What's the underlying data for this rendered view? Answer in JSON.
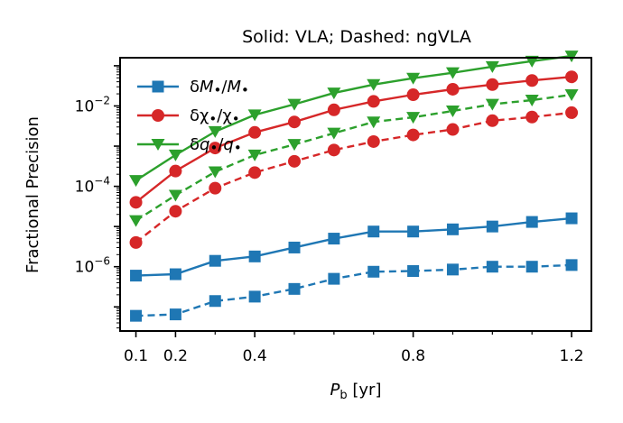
{
  "chart_data": {
    "type": "line",
    "title": "Solid: VLA; Dashed: ngVLA",
    "xlabel": "P_b [yr]",
    "xlabel_main": "P",
    "xlabel_sub": "b",
    "xlabel_unit": " [yr]",
    "ylabel": "Fractional Precision",
    "x_scale": "linear",
    "y_scale": "log",
    "xlim": [
      0.06,
      1.25
    ],
    "ylim_log10": [
      -7.6,
      -0.8
    ],
    "x_ticks": [
      0.1,
      0.2,
      0.4,
      0.8,
      1.2
    ],
    "x_tick_labels": [
      "0.1",
      "0.2",
      "0.4",
      "0.8",
      "1.2"
    ],
    "y_ticks_log10": [
      -6,
      -4,
      -2
    ],
    "y_tick_labels": [
      {
        "base": "10",
        "exp": "−6"
      },
      {
        "base": "10",
        "exp": "−4"
      },
      {
        "base": "10",
        "exp": "−2"
      }
    ],
    "x": [
      0.1,
      0.2,
      0.3,
      0.4,
      0.5,
      0.6,
      0.7,
      0.8,
      0.9,
      1.0,
      1.1,
      1.2
    ],
    "legend": {
      "placement": "top-left",
      "entries": [
        {
          "series_index": 0,
          "label": "δM•/M•",
          "parts": [
            {
              "t": "δ",
              "i": false
            },
            {
              "t": "M",
              "i": true
            },
            {
              "t": "•",
              "i": false,
              "sub": true
            },
            {
              "t": "/",
              "i": false
            },
            {
              "t": "M",
              "i": true
            },
            {
              "t": "•",
              "i": false,
              "sub": true
            }
          ]
        },
        {
          "series_index": 1,
          "label": "δχ•/χ•",
          "parts": [
            {
              "t": "δ",
              "i": false
            },
            {
              "t": "χ",
              "i": false
            },
            {
              "t": "•",
              "i": false,
              "sub": true
            },
            {
              "t": "/",
              "i": false
            },
            {
              "t": "χ",
              "i": false
            },
            {
              "t": "•",
              "i": false,
              "sub": true
            }
          ]
        },
        {
          "series_index": 2,
          "label": "δq•/q•",
          "parts": [
            {
              "t": "δ",
              "i": false
            },
            {
              "t": "q",
              "i": true
            },
            {
              "t": "•",
              "i": false,
              "sub": true
            },
            {
              "t": "/",
              "i": false
            },
            {
              "t": "q",
              "i": true
            },
            {
              "t": "•",
              "i": false,
              "sub": true
            }
          ]
        }
      ]
    },
    "series": [
      {
        "name": "δM•/M• VLA",
        "group": "M",
        "style": "solid",
        "marker": "square",
        "color": "#1f77b4",
        "values": [
          6e-07,
          6.5e-07,
          1.4e-06,
          1.8e-06,
          3e-06,
          5e-06,
          7.5e-06,
          7.5e-06,
          8.5e-06,
          1e-05,
          1.3e-05,
          1.6e-05
        ]
      },
      {
        "name": "δχ•/χ• VLA",
        "group": "chi",
        "style": "solid",
        "marker": "circle",
        "color": "#d62728",
        "values": [
          4e-05,
          0.00024,
          0.0009,
          0.0022,
          0.004,
          0.008,
          0.013,
          0.019,
          0.026,
          0.034,
          0.043,
          0.053
        ]
      },
      {
        "name": "δq•/q• VLA",
        "group": "q",
        "style": "solid",
        "marker": "triangle-down",
        "color": "#2ca02c",
        "values": [
          0.00014,
          0.0006,
          0.0023,
          0.006,
          0.011,
          0.021,
          0.034,
          0.049,
          0.067,
          0.095,
          0.13,
          0.175
        ]
      },
      {
        "name": "δM•/M• ngVLA",
        "group": "M",
        "style": "dashed",
        "marker": "square",
        "color": "#1f77b4",
        "values": [
          6e-08,
          6.5e-08,
          1.4e-07,
          1.8e-07,
          2.8e-07,
          5e-07,
          7.5e-07,
          7.8e-07,
          8.5e-07,
          1e-06,
          1e-06,
          1.1e-06
        ]
      },
      {
        "name": "δχ•/χ• ngVLA",
        "group": "chi",
        "style": "dashed",
        "marker": "circle",
        "color": "#d62728",
        "values": [
          4e-06,
          2.4e-05,
          9e-05,
          0.00022,
          0.00042,
          0.0008,
          0.0013,
          0.0019,
          0.0026,
          0.0043,
          0.0053,
          0.0068
        ]
      },
      {
        "name": "δq•/q• ngVLA",
        "group": "q",
        "style": "dashed",
        "marker": "triangle-down",
        "color": "#2ca02c",
        "values": [
          1.4e-05,
          6e-05,
          0.00023,
          0.0006,
          0.0011,
          0.0021,
          0.004,
          0.0052,
          0.0075,
          0.011,
          0.014,
          0.019
        ]
      }
    ]
  }
}
